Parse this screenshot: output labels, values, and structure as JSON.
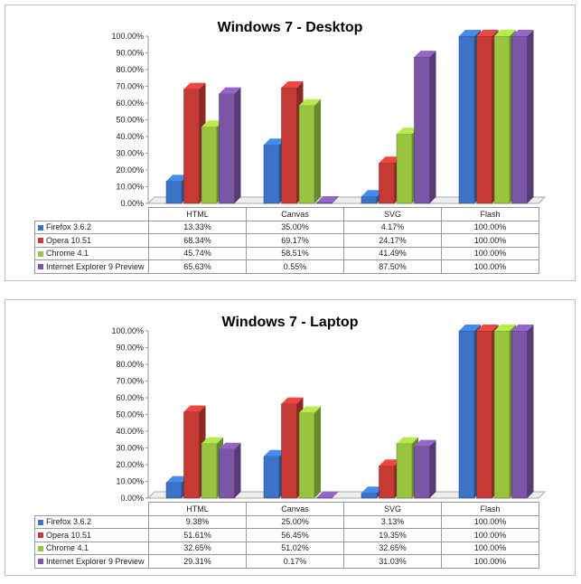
{
  "chart_data": [
    {
      "type": "bar",
      "title": "Windows 7 - Desktop",
      "categories": [
        "HTML",
        "Canvas",
        "SVG",
        "Flash"
      ],
      "ylim": [
        0,
        100
      ],
      "yticks": [
        "0.00%",
        "10.00%",
        "20.00%",
        "30.00%",
        "40.00%",
        "50.00%",
        "60.00%",
        "70.00%",
        "80.00%",
        "90.00%",
        "100.00%"
      ],
      "series": [
        {
          "name": "Firefox 3.6.2",
          "color": "#3b74c6",
          "values": [
            13.33,
            35.0,
            4.17,
            100.0
          ],
          "labels": [
            "13.33%",
            "35.00%",
            "4.17%",
            "100.00%"
          ]
        },
        {
          "name": "Opera 10.51",
          "color": "#c63a36",
          "values": [
            68.34,
            69.17,
            24.17,
            100.0
          ],
          "labels": [
            "68.34%",
            "69.17%",
            "24.17%",
            "100.00%"
          ]
        },
        {
          "name": "Chrome 4.1",
          "color": "#98c43f",
          "values": [
            45.74,
            58.51,
            41.49,
            100.0
          ],
          "labels": [
            "45.74%",
            "58.51%",
            "41.49%",
            "100.00%"
          ]
        },
        {
          "name": "Internet Explorer 9 Preview",
          "color": "#7b55a6",
          "values": [
            65.63,
            0.55,
            87.5,
            100.0
          ],
          "labels": [
            "65.63%",
            "0.55%",
            "87.50%",
            "100.00%"
          ]
        }
      ]
    },
    {
      "type": "bar",
      "title": "Windows 7 - Laptop",
      "categories": [
        "HTML",
        "Canvas",
        "SVG",
        "Flash"
      ],
      "ylim": [
        0,
        100
      ],
      "yticks": [
        "0.00%",
        "10.00%",
        "20.00%",
        "30.00%",
        "40.00%",
        "50.00%",
        "60.00%",
        "70.00%",
        "80.00%",
        "90.00%",
        "100.00%"
      ],
      "series": [
        {
          "name": "Firefox 3.6.2",
          "color": "#3b74c6",
          "values": [
            9.38,
            25.0,
            3.13,
            100.0
          ],
          "labels": [
            "9.38%",
            "25.00%",
            "3.13%",
            "100.00%"
          ]
        },
        {
          "name": "Opera 10.51",
          "color": "#c63a36",
          "values": [
            51.61,
            56.45,
            19.35,
            100.0
          ],
          "labels": [
            "51.61%",
            "56.45%",
            "19.35%",
            "100.00%"
          ]
        },
        {
          "name": "Chrome 4.1",
          "color": "#98c43f",
          "values": [
            32.65,
            51.02,
            32.65,
            100.0
          ],
          "labels": [
            "32.65%",
            "51.02%",
            "32.65%",
            "100.00%"
          ]
        },
        {
          "name": "Internet Explorer 9 Preview",
          "color": "#7b55a6",
          "values": [
            29.31,
            0.17,
            31.03,
            100.0
          ],
          "labels": [
            "29.31%",
            "0.17%",
            "31.03%",
            "100.00%"
          ]
        }
      ]
    }
  ]
}
